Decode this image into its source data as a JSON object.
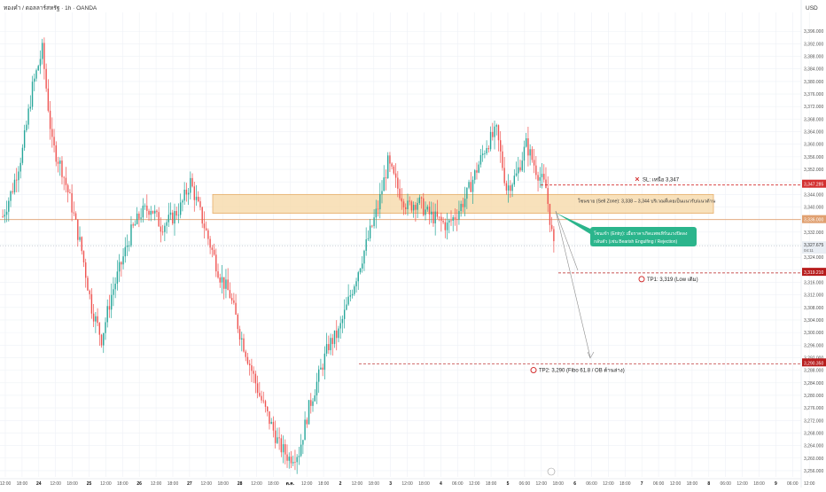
{
  "header": {
    "symbol_line": "ทองคำ / ดอลลาร์สหรัฐ · 1h · OANDA",
    "currency": "USD"
  },
  "colors": {
    "up": "#26a69a",
    "down": "#ef5350",
    "wick": "#555555",
    "sell_zone_fill": "#f7dcb0",
    "sell_zone_border": "#e3a050",
    "sl_line": "#d32f2f",
    "tp_line": "#b71c1c",
    "entry_callout": "#2bb58c",
    "price_line": "#e0a070",
    "grid": "#eef1f6"
  },
  "chart_data": {
    "type": "candlestick",
    "timeframe": "1h",
    "y_range": [
      3254,
      3402
    ],
    "y_ticks": [
      "3,396.000",
      "3,392.000",
      "3,388.000",
      "3,384.000",
      "3,380.000",
      "3,376.000",
      "3,372.000",
      "3,368.000",
      "3,364.000",
      "3,360.000",
      "3,356.000",
      "3,352.000",
      "3,348.000",
      "3,344.000",
      "3,340.000",
      "3,336.000",
      "3,332.000",
      "3,328.000",
      "3,324.000",
      "3,320.000",
      "3,316.000",
      "3,312.000",
      "3,308.000",
      "3,304.000",
      "3,300.000",
      "3,296.000",
      "3,292.000",
      "3,288.000",
      "3,284.000",
      "3,280.000",
      "3,276.000",
      "3,272.000",
      "3,268.000",
      "3,264.000",
      "3,260.000",
      "3,256.000"
    ],
    "x_ticks": [
      "12:00",
      "18:00",
      "24",
      "12:00",
      "18:00",
      "25",
      "12:00",
      "18:00",
      "26",
      "12:00",
      "18:00",
      "27",
      "12:00",
      "18:00",
      "28",
      "12:00",
      "18:00",
      "ต.ค.",
      "12:00",
      "18:00",
      "2",
      "12:00",
      "18:00",
      "3",
      "12:00",
      "18:00",
      "4",
      "06:00",
      "12:00",
      "18:00",
      "5",
      "06:00",
      "12:00",
      "18:00",
      "6",
      "06:00",
      "12:00",
      "18:00",
      "7",
      "06:00",
      "12:00",
      "18:00",
      "8",
      "06:00",
      "12:00",
      "18:00",
      "9",
      "06:00",
      "12:00"
    ],
    "anchors": [
      3337,
      3346,
      3358,
      3378,
      3390,
      3360,
      3352,
      3340,
      3326,
      3308,
      3298,
      3312,
      3322,
      3332,
      3338,
      3340,
      3334,
      3336,
      3340,
      3348,
      3338,
      3328,
      3318,
      3312,
      3300,
      3290,
      3280,
      3272,
      3264,
      3260,
      3262,
      3276,
      3286,
      3296,
      3300,
      3310,
      3320,
      3330,
      3340,
      3354,
      3346,
      3340,
      3342,
      3338,
      3336,
      3334,
      3338,
      3344,
      3352,
      3360,
      3364,
      3346,
      3350,
      3360,
      3352,
      3346,
      3322
    ],
    "current_price": "3,327.675",
    "current_price_sub": "04:11",
    "price_tags": [
      "3,347.285",
      "3,336.000",
      "3,319.210",
      "3,290.350"
    ],
    "annotations": {
      "sell_zone": {
        "label": "โซนขาย (Sell Zone): 3,338 – 3,344 บริเวณที่เคยเป็นแนวรับ/แนวต้าน",
        "low": 3338,
        "high": 3344
      },
      "sl": {
        "label": "SL: เหนือ 3,347",
        "price": 3347
      },
      "entry": {
        "line1": "โซนเข้า (Entry): เมื่อราคาเกิดแพทเทิร์นแรงปิดลง",
        "line2": "กลับตัว (เช่น Bearish Engulfing / Rejection)"
      },
      "tp1": {
        "label": "TP1: 3,319 (Low เดิม)",
        "price": 3319
      },
      "tp2": {
        "label": "TP2: 3,290 (Fibo 61.8 / OB ด้านล่าง)",
        "price": 3290
      }
    }
  }
}
